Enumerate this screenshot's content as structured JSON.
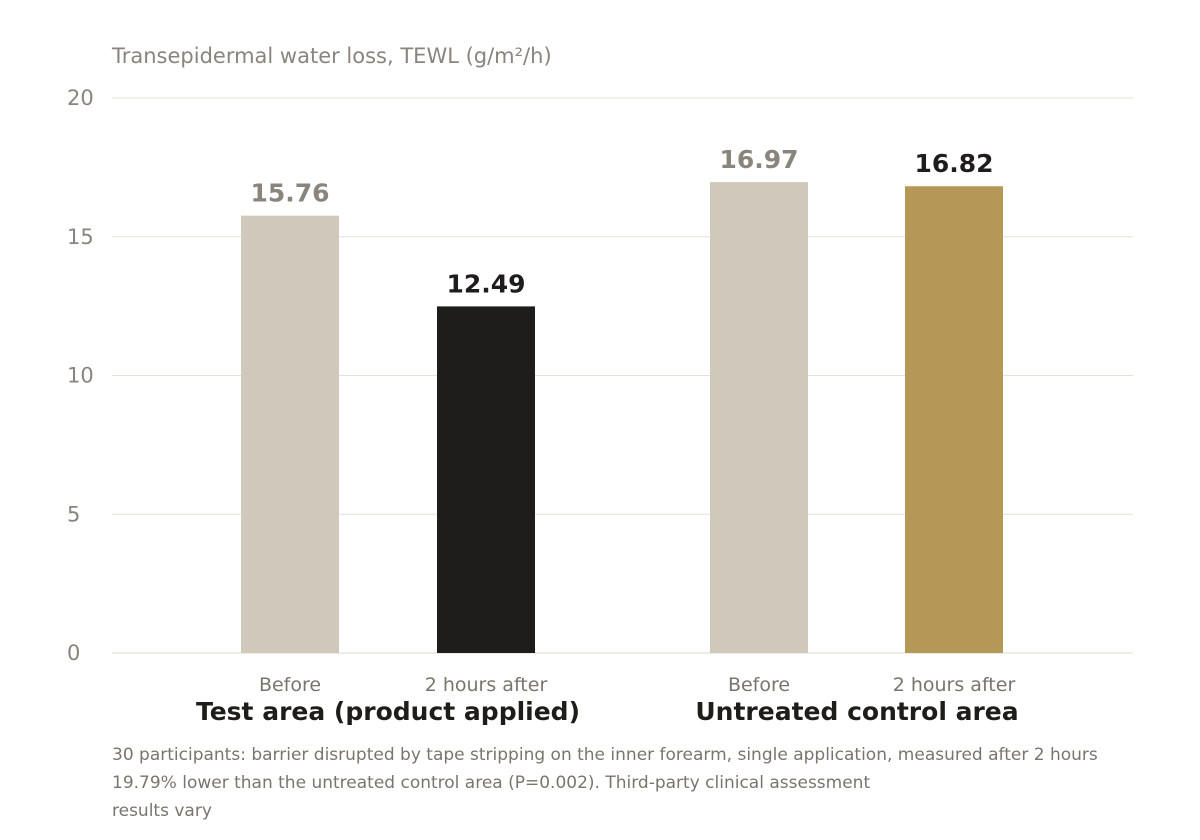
{
  "chart_data": {
    "type": "bar",
    "ylabel": "Transepidermal water loss, TEWL (g/m²/h)",
    "ylim": [
      0,
      20
    ],
    "yticks": [
      0,
      5,
      10,
      15,
      20
    ],
    "grid": true,
    "groups": [
      {
        "label": "Test area (product applied)",
        "bars": [
          {
            "category": "Before",
            "value": 15.76,
            "label": "15.76",
            "color": "#d0c9bb",
            "label_color": "#8a857c"
          },
          {
            "category": "2 hours after",
            "value": 12.49,
            "label": "12.49",
            "color": "#1e1d1b",
            "label_color": "#1e1d1b"
          }
        ]
      },
      {
        "label": "Untreated control area",
        "bars": [
          {
            "category": "Before",
            "value": 16.97,
            "label": "16.97",
            "color": "#d0c9bb",
            "label_color": "#8a857c"
          },
          {
            "category": "2 hours after",
            "value": 16.82,
            "label": "16.82",
            "color": "#b59857",
            "label_color": "#1e1d1b"
          }
        ]
      }
    ]
  },
  "notes": [
    "30 participants: barrier disrupted by tape stripping on the inner forearm, single application, measured after 2 hours",
    " 19.79% lower than the untreated control area (P=0.002). Third-party clinical assessment",
    " results vary"
  ]
}
